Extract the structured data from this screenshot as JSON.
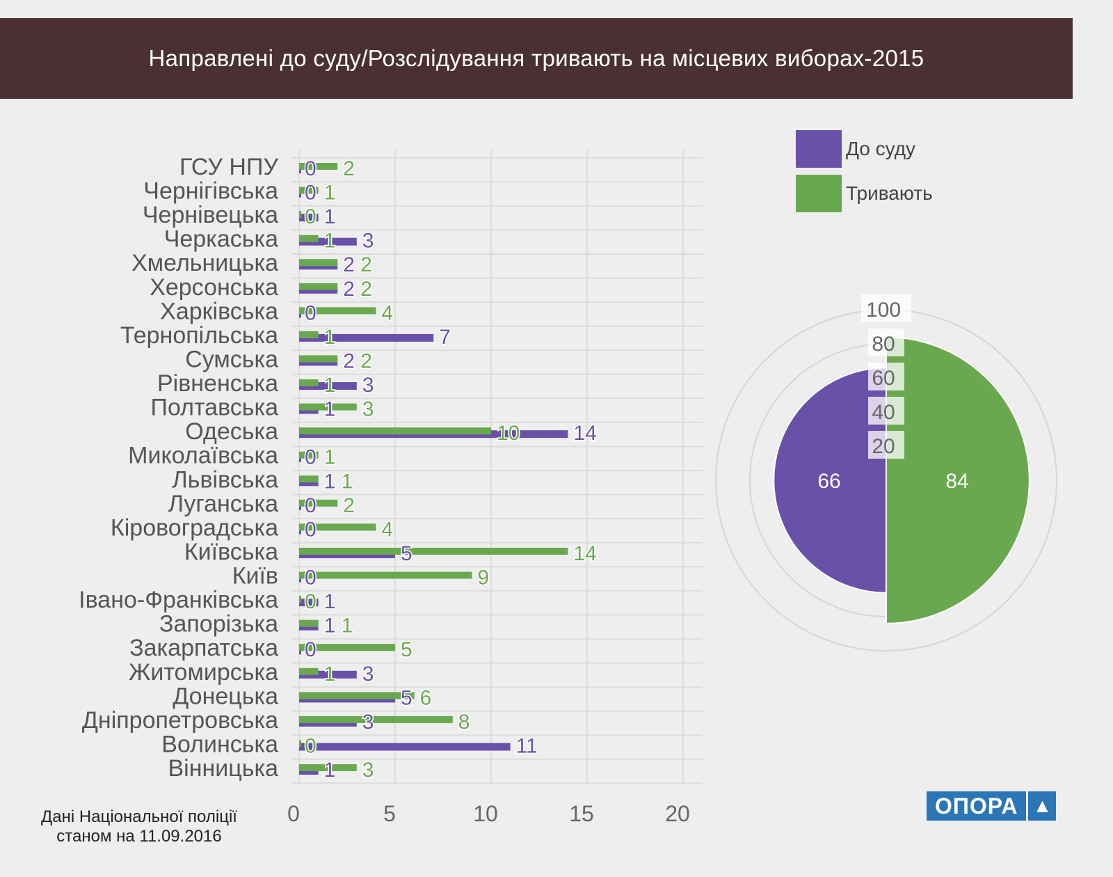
{
  "title": "Направлені до суду/Розслідування тривають на місцевих виборах-2015",
  "footnote": [
    "Дані Національної поліції",
    "станом на 11.09.2016"
  ],
  "logo": "ОПОРА",
  "colors": {
    "court": "#6950a8",
    "ongoing": "#6aa84f",
    "banner": "#4a3033",
    "logo": "#2b76b5"
  },
  "chart_data": [
    {
      "type": "bar",
      "orientation": "horizontal",
      "categories": [
        "ГСУ НПУ",
        "Чернігівська",
        "Чернівецька",
        "Черкаська",
        "Хмельницька",
        "Херсонська",
        "Харківська",
        "Тернопільська",
        "Сумська",
        "Рівненська",
        "Полтавська",
        "Одеська",
        "Миколаївська",
        "Львівська",
        "Луганська",
        "Кіровоградська",
        "Київська",
        "Київ",
        "Івано-Франківська",
        "Запорізька",
        "Закарпатська",
        "Житомирська",
        "Донецька",
        "Дніпропетровська",
        "Волинська",
        "Вінницька"
      ],
      "series": [
        {
          "name": "До суду",
          "values": [
            0,
            0,
            1,
            3,
            2,
            2,
            0,
            7,
            2,
            3,
            1,
            14,
            0,
            1,
            0,
            0,
            5,
            0,
            1,
            1,
            0,
            3,
            5,
            3,
            11,
            1
          ]
        },
        {
          "name": "Тривають",
          "values": [
            2,
            1,
            0,
            1,
            2,
            2,
            4,
            1,
            2,
            1,
            3,
            10,
            1,
            1,
            2,
            4,
            14,
            9,
            0,
            1,
            5,
            1,
            6,
            8,
            0,
            3
          ]
        }
      ],
      "xlim": [
        0,
        20
      ],
      "xticks": [
        "0",
        "5",
        "10",
        "15",
        "20"
      ],
      "grid": true,
      "data_labels": true
    },
    {
      "type": "polar-area",
      "categories": [
        "До суду",
        "Тривають"
      ],
      "values": [
        66,
        84
      ],
      "rlim": [
        0,
        100
      ],
      "rticks": [
        "20",
        "40",
        "60",
        "80",
        "100"
      ],
      "legend": "top-right"
    }
  ]
}
